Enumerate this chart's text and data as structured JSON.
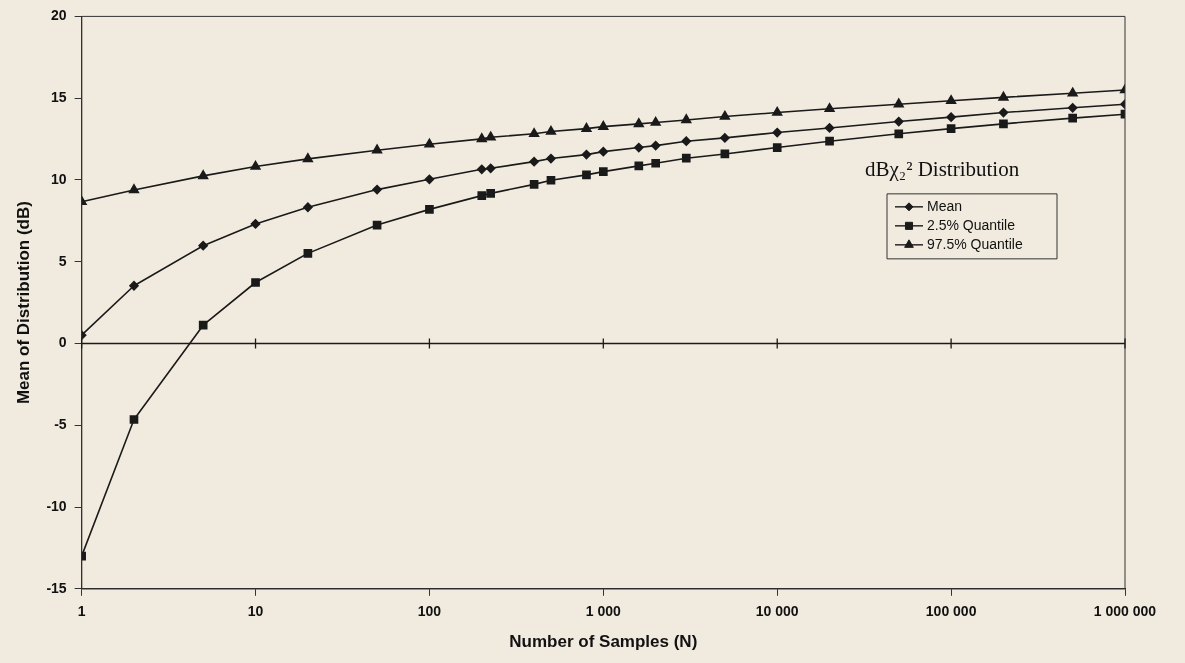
{
  "chart_data": {
    "type": "line",
    "xlabel": "Number of Samples (N)",
    "ylabel": "Mean of Distribution (dB)",
    "annotations": [
      "dBχ₂² Distribution"
    ],
    "x": [
      1,
      2,
      5,
      10,
      20,
      50,
      100,
      200,
      225,
      400,
      500,
      800,
      1000,
      1600,
      2000,
      3000,
      5000,
      10000,
      20000,
      50000,
      100000,
      200000,
      500000,
      1000000
    ],
    "series": [
      {
        "name": "Mean",
        "color": "#1a1a1a",
        "marker": "diamond",
        "values": [
          0.51,
          3.53,
          5.98,
          7.31,
          8.33,
          9.41,
          10.04,
          10.65,
          10.71,
          11.12,
          11.31,
          11.55,
          11.73,
          11.98,
          12.1,
          12.37,
          12.57,
          12.9,
          13.18,
          13.57,
          13.84,
          14.12,
          14.41,
          14.63
        ]
      },
      {
        "name": "2.5% Quantile",
        "color": "#1a1a1a",
        "marker": "square",
        "values": [
          -13.0,
          -4.65,
          1.12,
          3.73,
          5.51,
          7.24,
          8.2,
          9.04,
          9.18,
          9.73,
          9.98,
          10.31,
          10.51,
          10.86,
          11.02,
          11.33,
          11.59,
          11.98,
          12.37,
          12.82,
          13.14,
          13.43,
          13.78,
          14.02
        ]
      },
      {
        "name": "97.5% Quantile",
        "color": "#1a1a1a",
        "marker": "triangle",
        "values": [
          8.67,
          9.39,
          10.25,
          10.82,
          11.29,
          11.82,
          12.18,
          12.51,
          12.61,
          12.82,
          12.96,
          13.14,
          13.26,
          13.43,
          13.51,
          13.67,
          13.88,
          14.12,
          14.35,
          14.63,
          14.84,
          15.05,
          15.3,
          15.5
        ]
      }
    ],
    "log": "x",
    "xlim": [
      1,
      1000000
    ],
    "xticks": [
      1,
      10,
      100,
      {
        "value": 1000,
        "label": "1 000"
      },
      {
        "value": 10000,
        "label": "10 000"
      },
      {
        "value": 100000,
        "label": "100 000"
      },
      {
        "value": 1000000,
        "label": "1 000 000"
      }
    ],
    "ylim": [
      -15,
      20
    ],
    "yticks": [
      -15,
      -10,
      -5,
      0,
      5,
      10,
      15,
      20
    ],
    "ref_lines": [
      {
        "axis": "y",
        "value": 0,
        "color": "#1a1a1a"
      }
    ],
    "grid": false,
    "legend": "right",
    "line_style": "solid"
  }
}
